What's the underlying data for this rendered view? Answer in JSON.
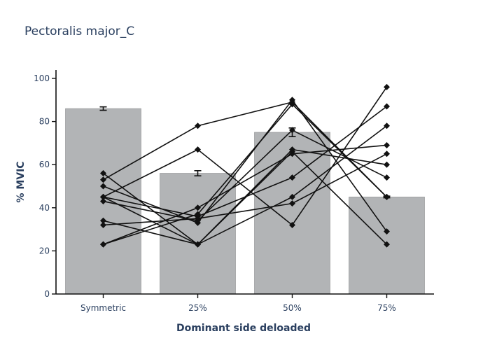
{
  "chart_data": {
    "type": "bar",
    "title": "Pectoralis major_C",
    "xlabel": "Dominant side deloaded",
    "ylabel": "% MVIC",
    "categories": [
      "Symmetric",
      "25%",
      "50%",
      "75%"
    ],
    "ylim": [
      0,
      100
    ],
    "yticks": [
      0,
      20,
      40,
      60,
      80,
      100
    ],
    "bars": {
      "values": [
        86,
        56,
        75,
        45
      ],
      "error": [
        0.8,
        1.2,
        2.0,
        0.4
      ],
      "color": "#b2b4b6",
      "outline": "#8a8c8e"
    },
    "subjects": [
      [
        56,
        23,
        66,
        23
      ],
      [
        53,
        78,
        89,
        45
      ],
      [
        50,
        33,
        90,
        29
      ],
      [
        45,
        67,
        32,
        96
      ],
      [
        45,
        36,
        54,
        87
      ],
      [
        45,
        23,
        45,
        78
      ],
      [
        43,
        34,
        76,
        54
      ],
      [
        34,
        23,
        67,
        60
      ],
      [
        32,
        35,
        42,
        65
      ],
      [
        23,
        37,
        88,
        45
      ],
      [
        23,
        40,
        65,
        69
      ]
    ],
    "line_color": "#111111",
    "marker": "diamond",
    "grid": false
  }
}
